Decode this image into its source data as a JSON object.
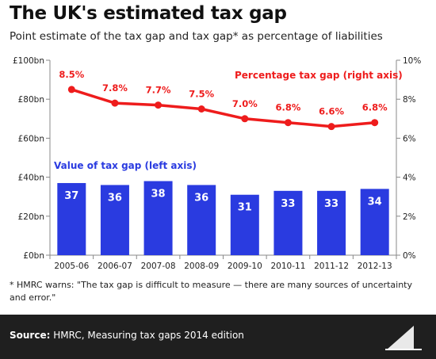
{
  "title": "The UK's estimated tax gap",
  "subtitle": "Point estimate of the tax gap and tax gap* as percentage of liabilities",
  "footnote": "* HMRC warns: \"The tax gap is difficult to measure — there are many sources of uncertainty and error.\"",
  "footer": {
    "source_label": "Source:",
    "source_text": " HMRC, Measuring tax gaps 2014 edition",
    "logo_text": "Full Fact"
  },
  "chart_data": {
    "type": "bar",
    "categories": [
      "2005-06",
      "2006-07",
      "2007-08",
      "2008-09",
      "2009-10",
      "2010-11",
      "2011-12",
      "2012-13"
    ],
    "series": [
      {
        "name": "Value of tax gap (left axis)",
        "type": "bar",
        "axis": "left",
        "values": [
          37,
          36,
          38,
          36,
          31,
          33,
          33,
          34
        ],
        "labels": [
          "37",
          "36",
          "38",
          "36",
          "31",
          "33",
          "33",
          "34"
        ],
        "color": "#2a3be0"
      },
      {
        "name": "Percentage tax gap (right axis)",
        "type": "line",
        "axis": "right",
        "values": [
          8.5,
          7.8,
          7.7,
          7.5,
          7.0,
          6.8,
          6.6,
          6.8
        ],
        "labels": [
          "8.5%",
          "7.8%",
          "7.7%",
          "7.5%",
          "7.0%",
          "6.8%",
          "6.6%",
          "6.8%"
        ],
        "color": "#ee1c1c"
      }
    ],
    "left_axis": {
      "ylim": [
        0,
        100
      ],
      "ticks": [
        0,
        20,
        40,
        60,
        80,
        100
      ],
      "tick_labels": [
        "£0bn",
        "£20bn",
        "£40bn",
        "£60bn",
        "£80bn",
        "£100bn"
      ]
    },
    "right_axis": {
      "ylim": [
        0,
        10
      ],
      "ticks": [
        0,
        2,
        4,
        6,
        8,
        10
      ],
      "tick_labels": [
        "0%",
        "2%",
        "4%",
        "6%",
        "8%",
        "10%"
      ]
    },
    "grid": false,
    "colors": {
      "bar": "#2a3be0",
      "line": "#ee1c1c",
      "axis": "#888888"
    }
  }
}
